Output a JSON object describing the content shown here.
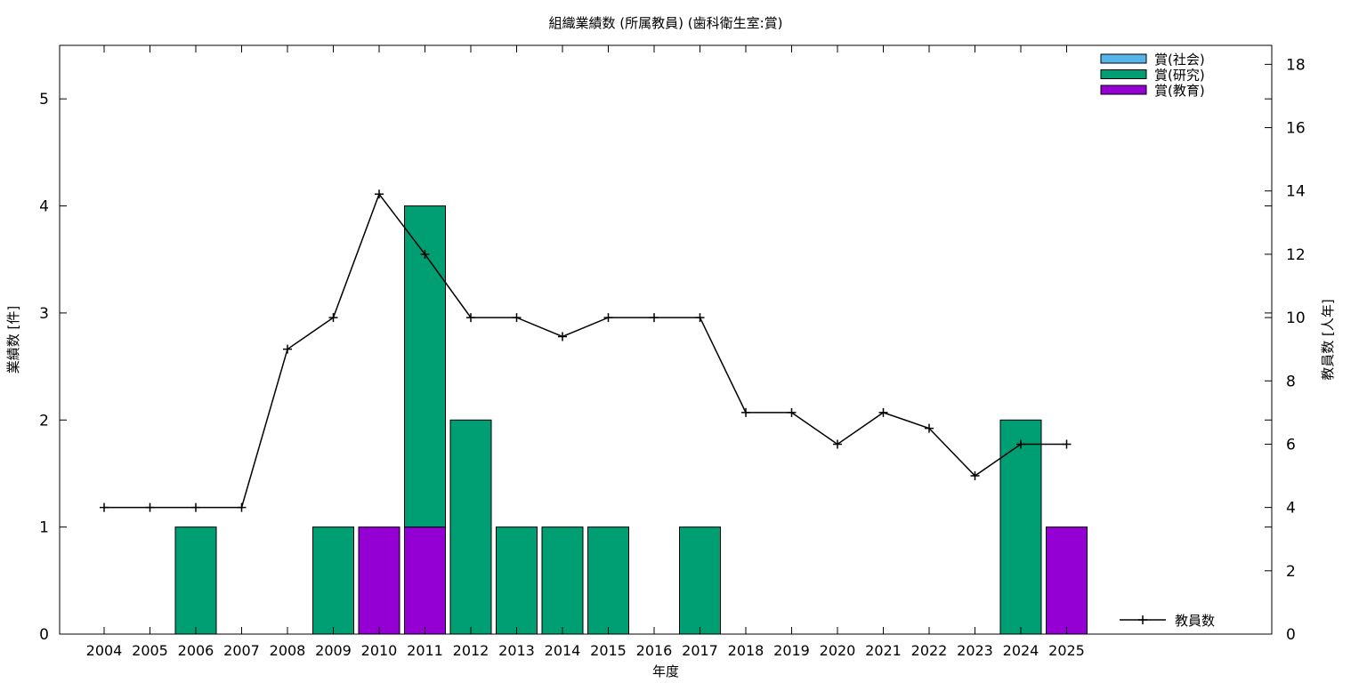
{
  "chart_data": {
    "type": "bar",
    "title": "組織業績数 (所属教員) (歯科衛生室:賞)",
    "xlabel": "年度",
    "ylabel": "業績数 [件]",
    "y2label": "教員数 [人年]",
    "categories": [
      "2004",
      "2005",
      "2006",
      "2007",
      "2008",
      "2009",
      "2010",
      "2011",
      "2012",
      "2013",
      "2014",
      "2015",
      "2016",
      "2017",
      "2018",
      "2019",
      "2020",
      "2021",
      "2022",
      "2023",
      "2024",
      "2025"
    ],
    "ylim": [
      0,
      5.5
    ],
    "yticks": [
      0,
      1,
      2,
      3,
      4,
      5
    ],
    "y2lim": [
      0,
      18.6
    ],
    "y2ticks": [
      0,
      2,
      4,
      6,
      8,
      10,
      12,
      14,
      16,
      18
    ],
    "stacked": true,
    "series": [
      {
        "name": "賞(社会)",
        "color": "#56b4e9",
        "values": [
          0,
          0,
          0,
          0,
          0,
          0,
          0,
          0,
          0,
          0,
          0,
          0,
          0,
          0,
          0,
          0,
          0,
          0,
          0,
          0,
          0,
          0
        ]
      },
      {
        "name": "賞(研究)",
        "color": "#009e73",
        "values": [
          0,
          0,
          1,
          0,
          0,
          1,
          0,
          3,
          2,
          1,
          1,
          1,
          0,
          1,
          0,
          0,
          0,
          0,
          0,
          0,
          2,
          0
        ]
      },
      {
        "name": "賞(教育)",
        "color": "#9400d3",
        "values": [
          0,
          0,
          0,
          0,
          0,
          0,
          1,
          1,
          0,
          0,
          0,
          0,
          0,
          0,
          0,
          0,
          0,
          0,
          0,
          0,
          0,
          1
        ]
      }
    ],
    "stack_order": [
      "賞(教育)",
      "賞(研究)",
      "賞(社会)"
    ],
    "line_series": {
      "name": "教員数",
      "axis": "right",
      "color": "#000000",
      "values": [
        4,
        4,
        4,
        4,
        9,
        10,
        13.9,
        12,
        10,
        10,
        9.4,
        10,
        10,
        10,
        7,
        7,
        6,
        7,
        6.5,
        5,
        6,
        6
      ]
    },
    "legend_position": "top-right",
    "grid": false
  }
}
